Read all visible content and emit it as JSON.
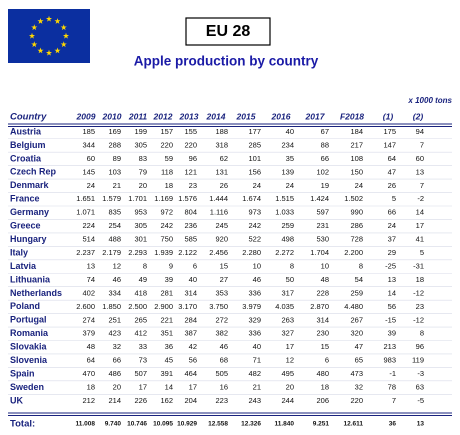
{
  "header": {
    "badge": "EU 28",
    "title": "Apple production by country",
    "unit": "x 1000 tons"
  },
  "table": {
    "columns": [
      "Country",
      "2009",
      "2010",
      "2011",
      "2012",
      "2013",
      "2014",
      "2015",
      "2016",
      "2017",
      "F2018",
      "(1)",
      "(2)"
    ],
    "rows": [
      [
        "Austria",
        "185",
        "169",
        "199",
        "157",
        "155",
        "188",
        "177",
        "40",
        "67",
        "184",
        "175",
        "94"
      ],
      [
        "Belgium",
        "344",
        "288",
        "305",
        "220",
        "220",
        "318",
        "285",
        "234",
        "88",
        "217",
        "147",
        "7"
      ],
      [
        "Croatia",
        "60",
        "89",
        "83",
        "59",
        "96",
        "62",
        "101",
        "35",
        "66",
        "108",
        "64",
        "60"
      ],
      [
        "Czech Rep",
        "145",
        "103",
        "79",
        "118",
        "121",
        "131",
        "156",
        "139",
        "102",
        "150",
        "47",
        "13"
      ],
      [
        "Denmark",
        "24",
        "21",
        "20",
        "18",
        "23",
        "26",
        "24",
        "24",
        "19",
        "24",
        "26",
        "7"
      ],
      [
        "France",
        "1.651",
        "1.579",
        "1.701",
        "1.169",
        "1.576",
        "1.444",
        "1.674",
        "1.515",
        "1.424",
        "1.502",
        "5",
        "-2"
      ],
      [
        "Germany",
        "1.071",
        "835",
        "953",
        "972",
        "804",
        "1.116",
        "973",
        "1.033",
        "597",
        "990",
        "66",
        "14"
      ],
      [
        "Greece",
        "224",
        "254",
        "305",
        "242",
        "236",
        "245",
        "242",
        "259",
        "231",
        "286",
        "24",
        "17"
      ],
      [
        "Hungary",
        "514",
        "488",
        "301",
        "750",
        "585",
        "920",
        "522",
        "498",
        "530",
        "728",
        "37",
        "41"
      ],
      [
        "Italy",
        "2.237",
        "2.179",
        "2.293",
        "1.939",
        "2.122",
        "2.456",
        "2.280",
        "2.272",
        "1.704",
        "2.200",
        "29",
        "5"
      ],
      [
        "Latvia",
        "13",
        "12",
        "8",
        "9",
        "6",
        "15",
        "10",
        "8",
        "10",
        "8",
        "-25",
        "-31"
      ],
      [
        "Lithuania",
        "74",
        "46",
        "49",
        "39",
        "40",
        "27",
        "46",
        "50",
        "48",
        "54",
        "13",
        "18"
      ],
      [
        "Netherlands",
        "402",
        "334",
        "418",
        "281",
        "314",
        "353",
        "336",
        "317",
        "228",
        "259",
        "14",
        "-12"
      ],
      [
        "Poland",
        "2.600",
        "1.850",
        "2.500",
        "2.900",
        "3.170",
        "3.750",
        "3.979",
        "4.035",
        "2.870",
        "4.480",
        "56",
        "23"
      ],
      [
        "Portugal",
        "274",
        "251",
        "265",
        "221",
        "284",
        "272",
        "329",
        "263",
        "314",
        "267",
        "-15",
        "-12"
      ],
      [
        "Romania",
        "379",
        "423",
        "412",
        "351",
        "387",
        "382",
        "336",
        "327",
        "230",
        "320",
        "39",
        "8"
      ],
      [
        "Slovakia",
        "48",
        "32",
        "33",
        "36",
        "42",
        "46",
        "40",
        "17",
        "15",
        "47",
        "213",
        "96"
      ],
      [
        "Slovenia",
        "64",
        "66",
        "73",
        "45",
        "56",
        "68",
        "71",
        "12",
        "6",
        "65",
        "983",
        "119"
      ],
      [
        "Spain",
        "470",
        "486",
        "507",
        "391",
        "464",
        "505",
        "482",
        "495",
        "480",
        "473",
        "-1",
        "-3"
      ],
      [
        "Sweden",
        "18",
        "20",
        "17",
        "14",
        "17",
        "16",
        "21",
        "20",
        "18",
        "32",
        "78",
        "63"
      ],
      [
        "UK",
        "212",
        "214",
        "226",
        "162",
        "204",
        "223",
        "243",
        "244",
        "206",
        "220",
        "7",
        "-5"
      ]
    ],
    "total": [
      "Total:",
      "11.008",
      "9.740",
      "10.746",
      "10.095",
      "10.929",
      "12.558",
      "12.326",
      "11.840",
      "9.251",
      "12.611",
      "36",
      "13"
    ]
  }
}
